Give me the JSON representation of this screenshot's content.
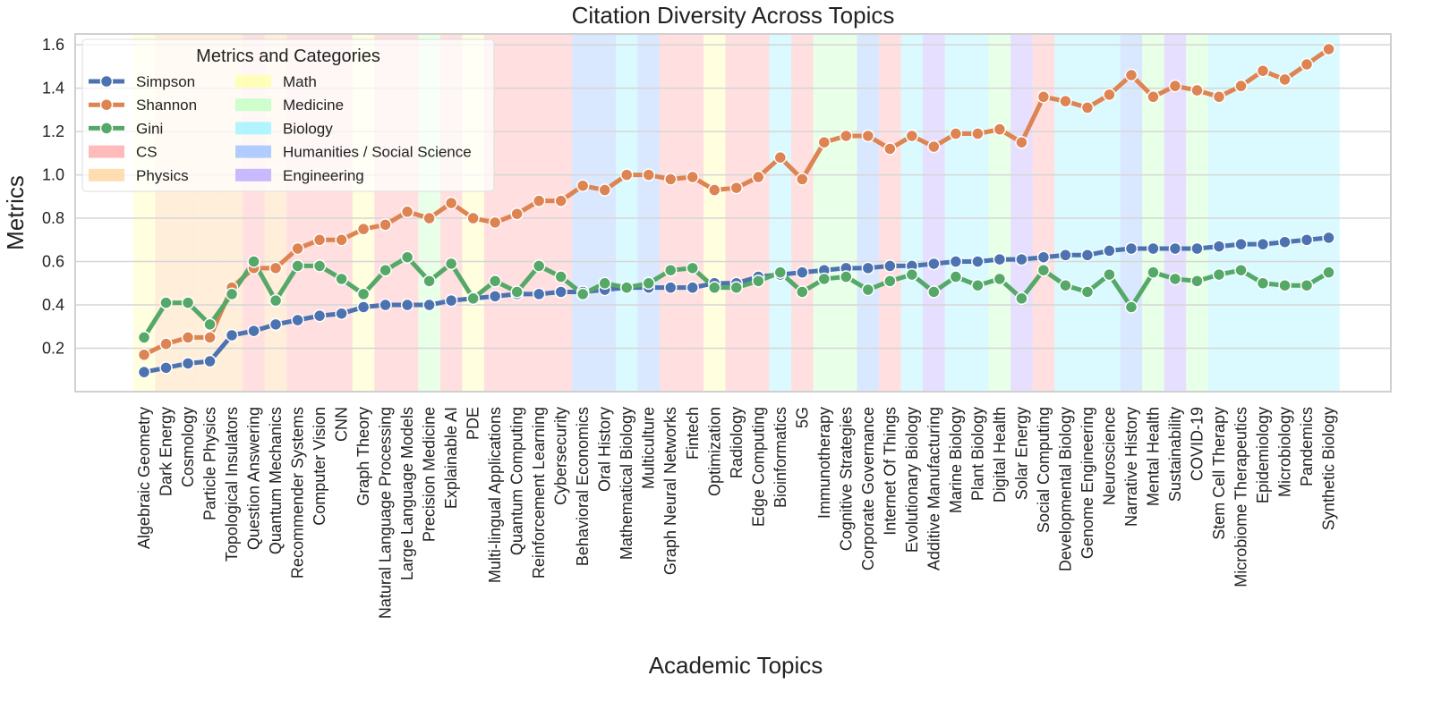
{
  "chart_data": {
    "type": "line",
    "title": "Citation Diversity Across Topics",
    "xlabel": "Academic Topics",
    "ylabel": "Metrics",
    "ylim": [
      0.0,
      1.65
    ],
    "yticks": [
      "0.2",
      "0.4",
      "0.6",
      "0.8",
      "1.0",
      "1.2",
      "1.4",
      "1.6"
    ],
    "grid": true,
    "legend_placement": "top-left",
    "legend_title": "Metrics and Categories",
    "categories": [
      "Algebraic Geometry",
      "Dark Energy",
      "Cosmology",
      "Particle Physics",
      "Topological Insulators",
      "Question Answering",
      "Quantum Mechanics",
      "Recommender Systems",
      "Computer Vision",
      "CNN",
      "Graph Theory",
      "Natural Language Processing",
      "Large Language Models",
      "Precision Medicine",
      "Explainable AI",
      "PDE",
      "Multi-lingual Applications",
      "Quantum Computing",
      "Reinforcement Learning",
      "Cybersecurity",
      "Behavioral Economics",
      "Oral History",
      "Mathematical Biology",
      "Multiculture",
      "Graph Neural Networks",
      "Fintech",
      "Optimization",
      "Radiology",
      "Edge Computing",
      "Bioinformatics",
      "5G",
      "Immunotherapy",
      "Cognitive Strategies",
      "Corporate Governance",
      "Internet Of Things",
      "Evolutionary Biology",
      "Additive Manufacturing",
      "Marine Biology",
      "Plant Biology",
      "Digital Health",
      "Solar Energy",
      "Social Computing",
      "Developmental Biology",
      "Genome Engineering",
      "Neuroscience",
      "Narrative History",
      "Mental Health",
      "Sustainability",
      "COVID-19",
      "Stem Cell Therapy",
      "Microbiome Therapeutics",
      "Epidemiology",
      "Microbiology",
      "Pandemics",
      "Synthetic Biology"
    ],
    "topic_category": [
      "Math",
      "Physics",
      "Physics",
      "Physics",
      "Physics",
      "CS",
      "Physics",
      "CS",
      "CS",
      "CS",
      "Math",
      "CS",
      "CS",
      "Medicine",
      "CS",
      "Math",
      "CS",
      "CS",
      "CS",
      "CS",
      "Humanities / Social Science",
      "Humanities / Social Science",
      "Biology",
      "Humanities / Social Science",
      "CS",
      "CS",
      "Math",
      "CS",
      "CS",
      "Biology",
      "CS",
      "Medicine",
      "Medicine",
      "Humanities / Social Science",
      "CS",
      "Biology",
      "Engineering",
      "Biology",
      "Biology",
      "Medicine",
      "Engineering",
      "CS",
      "Biology",
      "Biology",
      "Biology",
      "Humanities / Social Science",
      "Medicine",
      "Engineering",
      "Medicine",
      "Biology",
      "Biology",
      "Biology",
      "Biology",
      "Biology",
      "Biology"
    ],
    "series": [
      {
        "name": "Simpson",
        "color": "#4C72B0",
        "values": [
          0.09,
          0.11,
          0.13,
          0.14,
          0.26,
          0.28,
          0.31,
          0.33,
          0.35,
          0.36,
          0.39,
          0.4,
          0.4,
          0.4,
          0.42,
          0.43,
          0.44,
          0.45,
          0.45,
          0.46,
          0.46,
          0.47,
          0.48,
          0.48,
          0.48,
          0.48,
          0.5,
          0.5,
          0.53,
          0.54,
          0.55,
          0.56,
          0.57,
          0.57,
          0.58,
          0.58,
          0.59,
          0.6,
          0.6,
          0.61,
          0.61,
          0.62,
          0.63,
          0.63,
          0.65,
          0.66,
          0.66,
          0.66,
          0.66,
          0.67,
          0.68,
          0.68,
          0.69,
          0.7,
          0.71
        ]
      },
      {
        "name": "Shannon",
        "color": "#DD8452",
        "values": [
          0.17,
          0.22,
          0.25,
          0.25,
          0.48,
          0.57,
          0.57,
          0.66,
          0.7,
          0.7,
          0.75,
          0.77,
          0.83,
          0.8,
          0.87,
          0.8,
          0.78,
          0.82,
          0.88,
          0.88,
          0.95,
          0.93,
          1.0,
          1.0,
          0.98,
          0.99,
          0.93,
          0.94,
          0.99,
          1.08,
          0.98,
          1.15,
          1.18,
          1.18,
          1.12,
          1.18,
          1.13,
          1.19,
          1.19,
          1.21,
          1.15,
          1.36,
          1.34,
          1.31,
          1.37,
          1.46,
          1.36,
          1.41,
          1.39,
          1.36,
          1.41,
          1.48,
          1.44,
          1.51,
          1.58
        ]
      },
      {
        "name": "Gini",
        "color": "#55A868",
        "values": [
          0.25,
          0.41,
          0.41,
          0.31,
          0.45,
          0.6,
          0.42,
          0.58,
          0.58,
          0.52,
          0.45,
          0.56,
          0.62,
          0.51,
          0.59,
          0.43,
          0.51,
          0.46,
          0.58,
          0.53,
          0.45,
          0.5,
          0.48,
          0.5,
          0.56,
          0.57,
          0.48,
          0.48,
          0.51,
          0.55,
          0.46,
          0.52,
          0.53,
          0.47,
          0.51,
          0.54,
          0.46,
          0.53,
          0.49,
          0.52,
          0.43,
          0.56,
          0.49,
          0.46,
          0.54,
          0.39,
          0.55,
          0.52,
          0.51,
          0.54,
          0.56,
          0.5,
          0.49,
          0.49,
          0.55
        ]
      }
    ],
    "category_colors": {
      "CS": "#FFB3B3",
      "Physics": "#FFD9A8",
      "Math": "#FFFFB3",
      "Medicine": "#C8FFC8",
      "Biology": "#A8F4FF",
      "Humanities / Social Science": "#A8C8FF",
      "Engineering": "#C3B3FF"
    },
    "legend_categories": [
      "CS",
      "Physics",
      "Math",
      "Medicine",
      "Biology",
      "Humanities / Social Science",
      "Engineering"
    ]
  }
}
